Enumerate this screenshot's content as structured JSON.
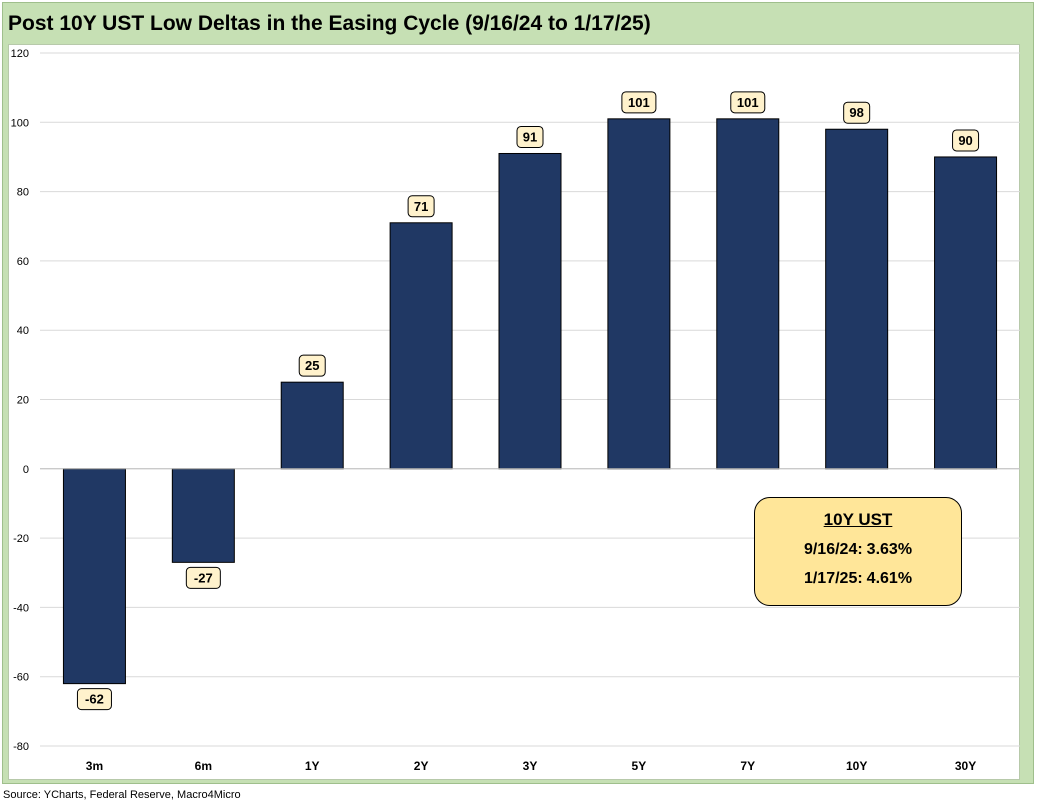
{
  "chart_data": {
    "type": "bar",
    "title": "Post 10Y UST Low Deltas in the Easing Cycle (9/16/24 to 1/17/25)",
    "categories": [
      "3m",
      "6m",
      "1Y",
      "2Y",
      "3Y",
      "5Y",
      "7Y",
      "10Y",
      "30Y"
    ],
    "values": [
      -62,
      -27,
      25,
      71,
      91,
      101,
      101,
      98,
      90
    ],
    "ylim": [
      -80,
      120
    ],
    "yticks": [
      -80,
      -60,
      -40,
      -20,
      0,
      20,
      40,
      60,
      80,
      100,
      120
    ],
    "grid": true,
    "bar_color": "#203864",
    "label_bg": "#fff2cc",
    "callout": {
      "title": "10Y UST",
      "lines": [
        {
          "label": "9/16/24:",
          "value": "3.63%"
        },
        {
          "label": "1/17/25:",
          "value": "4.61%"
        }
      ]
    }
  },
  "source": "Source: YCharts, Federal Reserve, Macro4Micro"
}
